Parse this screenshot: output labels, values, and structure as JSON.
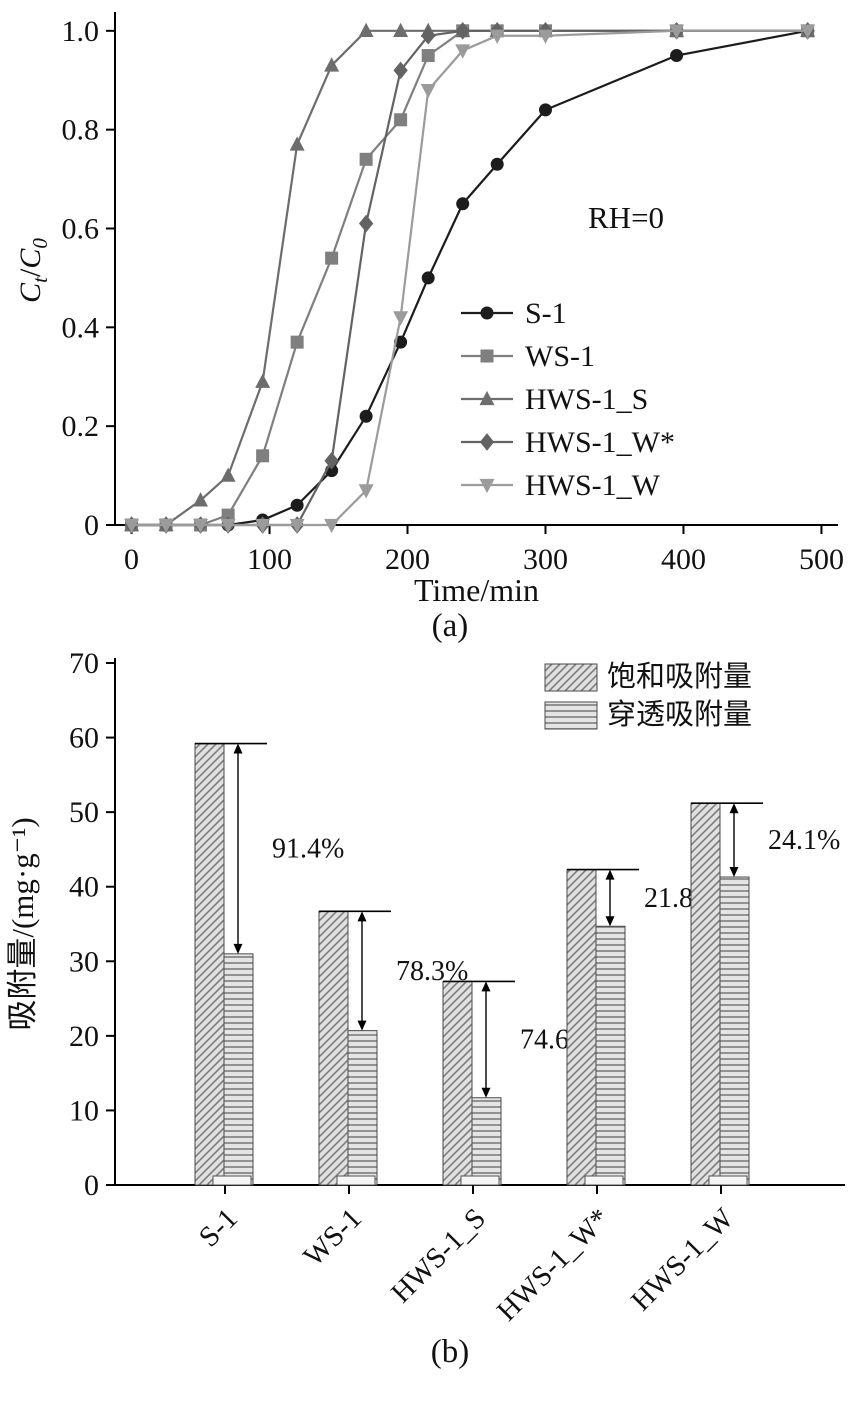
{
  "figure": {
    "caption_a": "(a)",
    "caption_b": "(b)"
  },
  "chart_data": [
    {
      "type": "line",
      "title": "",
      "xlabel": "Time/min",
      "ylabel": "Ct/C0",
      "ylabel_parts": [
        {
          "t": "C",
          "s": "i"
        },
        {
          "t": "t",
          "s": "sub"
        },
        {
          "t": "/",
          "s": "n"
        },
        {
          "t": "C",
          "s": "i"
        },
        {
          "t": "0",
          "s": "sub"
        }
      ],
      "annotation": "RH=0",
      "xlim": [
        -12,
        512
      ],
      "ylim": [
        0,
        1.03
      ],
      "grid": false,
      "legend_position": "center-right-inside",
      "xticks": {
        "values": [
          0,
          100,
          200,
          300,
          400,
          500
        ],
        "labels": [
          "0",
          "100",
          "200",
          "300",
          "400",
          "500"
        ]
      },
      "yticks": {
        "values": [
          0,
          0.2,
          0.4,
          0.6,
          0.8,
          1.0
        ],
        "labels": [
          "0",
          "0.2",
          "0.4",
          "0.6",
          "0.8",
          "1.0"
        ]
      },
      "x": [
        0,
        25,
        50,
        70,
        95,
        120,
        145,
        170,
        195,
        215,
        240,
        265,
        300,
        395,
        490
      ],
      "series": [
        {
          "name": "S-1",
          "marker": "circle",
          "color": "#1c1c1c",
          "values": [
            0,
            0,
            0,
            0,
            0.01,
            0.04,
            0.11,
            0.22,
            0.37,
            0.5,
            0.65,
            0.73,
            0.84,
            0.95,
            1.0
          ]
        },
        {
          "name": "WS-1",
          "marker": "square",
          "color": "#7f7f7f",
          "values": [
            0,
            0,
            0,
            0.02,
            0.14,
            0.37,
            0.54,
            0.74,
            0.82,
            0.95,
            1.0,
            1.0,
            1.0,
            1.0,
            1.0
          ]
        },
        {
          "name": "HWS-1_S",
          "marker": "triangle-up",
          "color": "#6d6d6d",
          "values": [
            0,
            0,
            0.05,
            0.1,
            0.29,
            0.77,
            0.93,
            1.0,
            1.0,
            1.0,
            1.0,
            1.0,
            1.0,
            1.0,
            1.0
          ]
        },
        {
          "name": "HWS-1_W*",
          "marker": "diamond",
          "color": "#636363",
          "values": [
            0,
            0,
            0,
            0,
            0,
            0,
            0.13,
            0.61,
            0.92,
            0.99,
            1.0,
            1.0,
            1.0,
            1.0,
            1.0
          ]
        },
        {
          "name": "HWS-1_W",
          "marker": "triangle-down",
          "color": "#9b9b9b",
          "values": [
            0,
            0,
            0,
            0,
            0,
            0,
            0,
            0.07,
            0.42,
            0.88,
            0.96,
            0.99,
            0.99,
            1.0,
            1.0
          ]
        }
      ]
    },
    {
      "type": "bar",
      "categories": [
        "S-1",
        "WS-1",
        "HWS-1_S",
        "HWS-1_W*",
        "HWS-1_W"
      ],
      "series": [
        {
          "name": "饱和吸附量",
          "hatch": "diagonal",
          "hatch_fill": "#e0e0e0",
          "hatch_line": "#7d7d7d",
          "values": [
            59.2,
            36.7,
            27.3,
            42.3,
            51.2
          ]
        },
        {
          "name": "穿透吸附量",
          "hatch": "horizontal",
          "hatch_fill": "#e4e4e4",
          "hatch_line": "#7d7d7d",
          "values": [
            31.0,
            20.7,
            11.7,
            34.7,
            41.3
          ]
        }
      ],
      "annotations": [
        "91.4%",
        "78.3%",
        "74.6%",
        "21.8%",
        "24.1%"
      ],
      "ylabel": "吸附量/(mg·g⁻¹)",
      "ylim": [
        0,
        70
      ],
      "grid": false,
      "legend_position": "top-right-inside",
      "yticks": {
        "values": [
          0,
          10,
          20,
          30,
          40,
          50,
          60,
          70
        ],
        "labels": [
          "0",
          "10",
          "20",
          "30",
          "40",
          "50",
          "60",
          "70"
        ]
      }
    }
  ]
}
